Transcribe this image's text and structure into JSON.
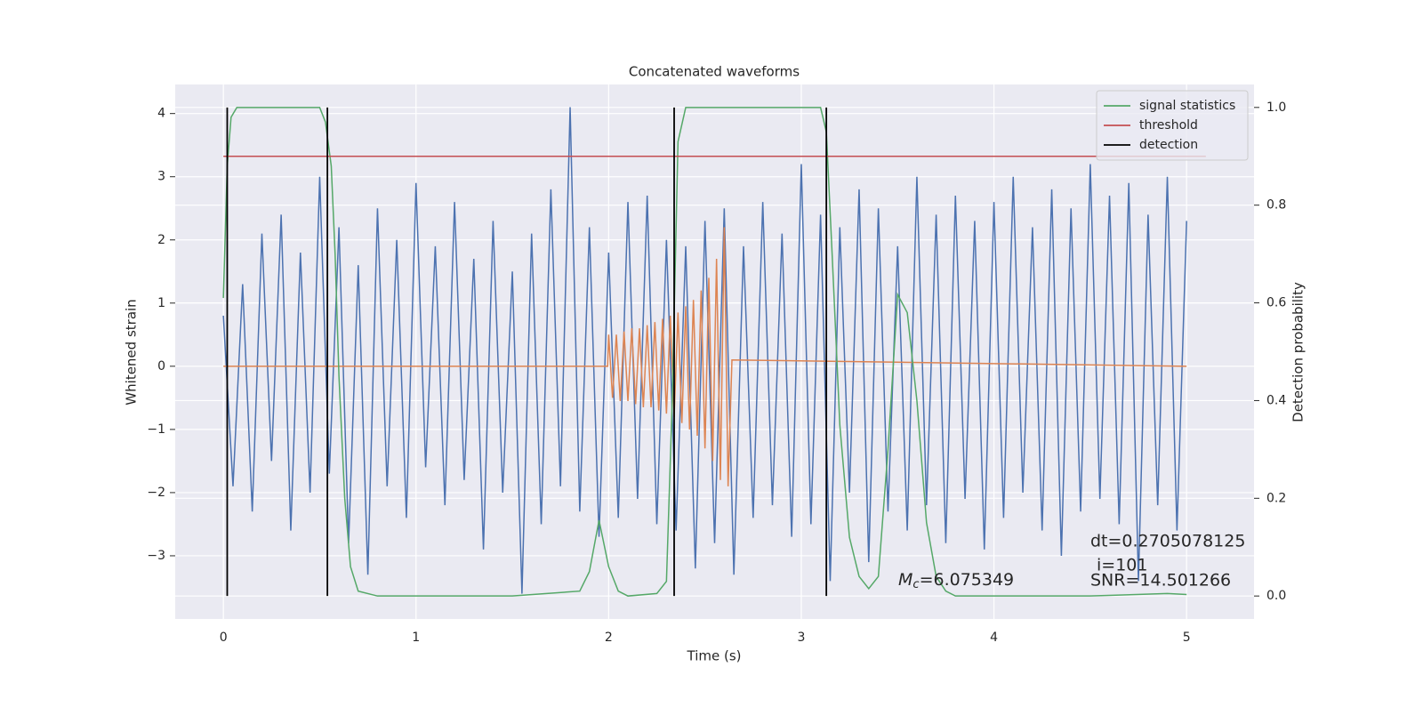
{
  "chart_data": {
    "type": "line",
    "title": "Concatenated waveforms",
    "xlabel": "Time (s)",
    "ylabel": "Whitened strain",
    "y2label": "Detection probability",
    "xlim": [
      -0.25,
      5.35
    ],
    "ylim": [
      -4.0,
      4.46
    ],
    "y2lim": [
      -0.047,
      1.047
    ],
    "xticks": [
      0,
      1,
      2,
      3,
      4,
      5
    ],
    "yticks": [
      {
        "value": -3,
        "label": "−3"
      },
      {
        "value": -2,
        "label": "−2"
      },
      {
        "value": -1,
        "label": "−1"
      },
      0,
      1,
      2,
      3,
      4
    ],
    "y2ticks": [
      {
        "value": 0,
        "label": "0.0"
      },
      0.2,
      0.4,
      0.6,
      0.8,
      {
        "value": 1,
        "label": "1.0"
      }
    ],
    "grid": true,
    "legend": "upper right",
    "series": [
      {
        "color": "#4c72b0",
        "x": [
          0,
          0.05,
          0.1,
          0.15,
          0.2,
          0.25,
          0.3,
          0.35,
          0.4,
          0.45,
          0.5,
          0.55,
          0.6,
          0.65,
          0.7,
          0.75,
          0.8,
          0.85,
          0.9,
          0.95,
          1,
          1.05,
          1.1,
          1.15,
          1.2,
          1.25,
          1.3,
          1.35,
          1.4,
          1.45,
          1.5,
          1.55,
          1.6,
          1.65,
          1.7,
          1.75,
          1.8,
          1.85,
          1.9,
          1.95,
          2,
          2.05,
          2.1,
          2.15,
          2.2,
          2.25,
          2.3,
          2.35,
          2.4,
          2.45,
          2.5,
          2.55,
          2.6,
          2.65,
          2.7,
          2.75,
          2.8,
          2.85,
          2.9,
          2.95,
          3,
          3.05,
          3.1,
          3.15,
          3.2,
          3.25,
          3.3,
          3.35,
          3.4,
          3.45,
          3.5,
          3.55,
          3.6,
          3.65,
          3.7,
          3.75,
          3.8,
          3.85,
          3.9,
          3.95,
          4,
          4.05,
          4.1,
          4.15,
          4.2,
          4.25,
          4.3,
          4.35,
          4.4,
          4.45,
          4.5,
          4.55,
          4.6,
          4.65,
          4.7,
          4.75,
          4.8,
          4.85,
          4.9,
          4.95,
          5
        ],
        "values": [
          0.8,
          -1.9,
          1.3,
          -2.3,
          2.1,
          -1.5,
          2.4,
          -2.6,
          1.8,
          -2.0,
          3.0,
          -1.7,
          2.2,
          -2.8,
          1.6,
          -3.3,
          2.5,
          -1.9,
          2.0,
          -2.4,
          2.9,
          -1.6,
          1.9,
          -2.2,
          2.6,
          -1.8,
          1.7,
          -2.9,
          2.3,
          -2.0,
          1.5,
          -3.6,
          2.1,
          -2.5,
          2.8,
          -1.9,
          4.1,
          -2.3,
          2.2,
          -2.7,
          1.8,
          -2.4,
          2.6,
          -2.1,
          2.7,
          -2.5,
          2.0,
          -2.6,
          1.9,
          -3.2,
          2.3,
          -2.8,
          2.5,
          -3.3,
          1.9,
          -2.4,
          2.6,
          -2.2,
          2.1,
          -2.7,
          3.2,
          -2.5,
          2.4,
          -3.4,
          2.2,
          -2.0,
          2.8,
          -3.1,
          2.5,
          -2.3,
          1.9,
          -2.6,
          3.0,
          -2.2,
          2.4,
          -2.8,
          2.7,
          -2.1,
          2.3,
          -2.9,
          2.6,
          -2.4,
          3.0,
          -2.0,
          2.2,
          -2.6,
          2.8,
          -3.0,
          2.5,
          -2.3,
          3.2,
          -2.1,
          2.7,
          -2.5,
          2.9,
          -3.4,
          2.4,
          -2.2,
          3.0,
          -2.6,
          2.3
        ]
      },
      {
        "color": "#dd8452",
        "x": [
          0,
          1.995,
          2.0,
          2.02,
          2.04,
          2.06,
          2.08,
          2.1,
          2.12,
          2.14,
          2.16,
          2.18,
          2.2,
          2.22,
          2.24,
          2.26,
          2.28,
          2.3,
          2.32,
          2.34,
          2.36,
          2.38,
          2.4,
          2.42,
          2.44,
          2.46,
          2.48,
          2.5,
          2.52,
          2.54,
          2.56,
          2.58,
          2.6,
          2.62,
          2.64,
          5
        ],
        "values": [
          0,
          0,
          0.5,
          -0.5,
          0.5,
          -0.55,
          0.55,
          -0.55,
          0.6,
          -0.6,
          0.6,
          -0.65,
          0.65,
          -0.65,
          0.7,
          -0.7,
          0.75,
          -0.75,
          0.8,
          -0.8,
          0.85,
          -0.9,
          0.95,
          -1.0,
          1.05,
          -1.1,
          1.2,
          -1.3,
          1.4,
          -1.5,
          1.7,
          -1.8,
          2.2,
          -1.9,
          0.1,
          0
        ]
      },
      {
        "name": "signal statistics",
        "color": "#55a868",
        "axis": "y2",
        "x": [
          0,
          0.02,
          0.04,
          0.07,
          0.3,
          0.5,
          0.53,
          0.56,
          0.58,
          0.6,
          0.63,
          0.66,
          0.7,
          0.8,
          1.5,
          1.85,
          1.9,
          1.95,
          2.0,
          2.05,
          2.1,
          2.25,
          2.3,
          2.33,
          2.36,
          2.4,
          2.8,
          3.1,
          3.13,
          3.16,
          3.2,
          3.25,
          3.3,
          3.35,
          3.4,
          3.45,
          3.5,
          3.55,
          3.6,
          3.65,
          3.7,
          3.75,
          3.8,
          4.0,
          4.5,
          4.9,
          5.0
        ],
        "values": [
          0.61,
          0.88,
          0.98,
          1.0,
          1.0,
          1.0,
          0.97,
          0.88,
          0.7,
          0.45,
          0.2,
          0.06,
          0.01,
          0.0,
          0.0,
          0.01,
          0.05,
          0.155,
          0.06,
          0.01,
          0.0,
          0.005,
          0.03,
          0.4,
          0.93,
          1.0,
          1.0,
          1.0,
          0.95,
          0.7,
          0.35,
          0.12,
          0.04,
          0.015,
          0.04,
          0.3,
          0.617,
          0.58,
          0.4,
          0.15,
          0.04,
          0.01,
          0.0,
          0.0,
          0.0,
          0.005,
          0.003
        ]
      },
      {
        "name": "threshold",
        "color": "#c44e52",
        "axis": "y2",
        "x": [
          0,
          5.1
        ],
        "values": [
          0.9,
          0.9
        ]
      }
    ],
    "vlines": {
      "name": "detection",
      "color": "#000000",
      "axis": "y2",
      "x": [
        0.02,
        0.54,
        2.34,
        3.13
      ],
      "ymin": 0,
      "ymax": 1
    },
    "annotations": {
      "dt": "dt=0.2705078125",
      "i": "i=101",
      "snr": "SNR=14.501266",
      "mc": {
        "symbol": "M",
        "subscript": "c",
        "text": "=6.075349"
      }
    }
  }
}
